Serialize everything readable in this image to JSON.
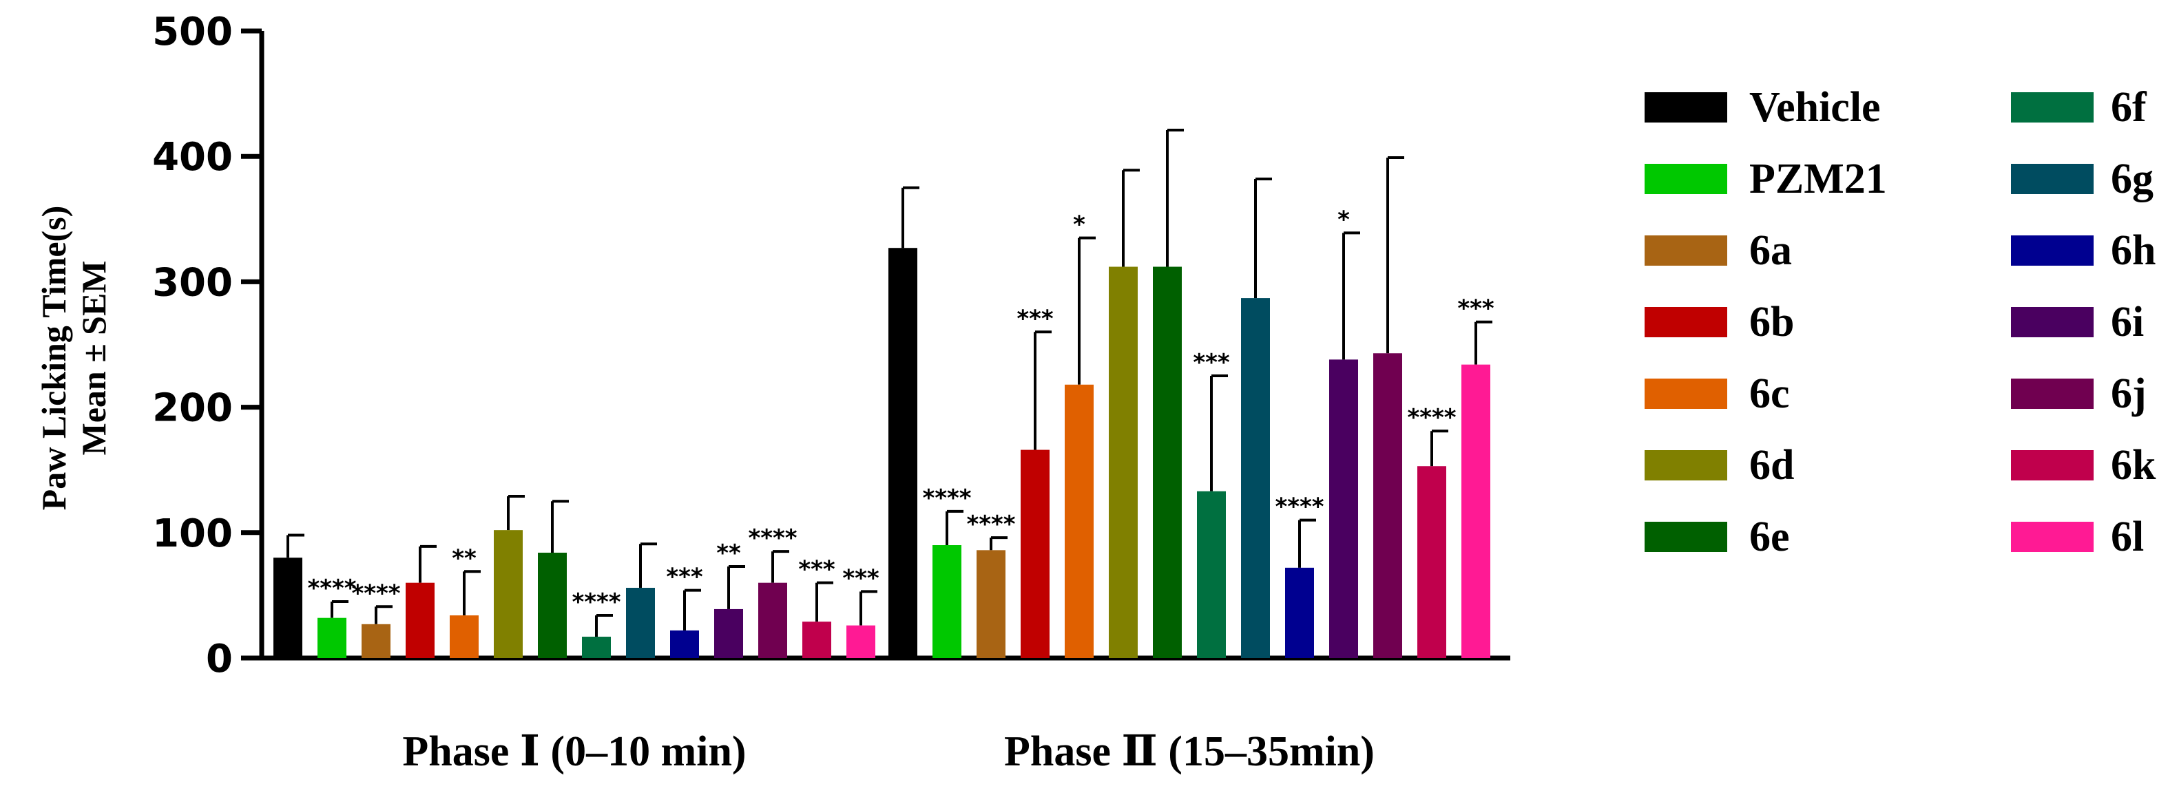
{
  "chart_data": {
    "type": "bar",
    "title": "",
    "ylabel_line1": "Paw Licking Time(s)",
    "ylabel_line2": "Mean ± SEM",
    "ylim": [
      0,
      500
    ],
    "yticks": [
      0,
      100,
      200,
      300,
      400,
      500
    ],
    "categories": [
      "Phase Ⅰ (0–10 min)",
      "Phase Ⅱ (15–35min)"
    ],
    "series": [
      {
        "name": "Vehicle",
        "color": "#000000",
        "values": [
          80,
          327
        ],
        "errors": [
          18,
          48
        ],
        "sig": [
          "",
          ""
        ]
      },
      {
        "name": "PZM21",
        "color": "#00c800",
        "values": [
          32,
          90
        ],
        "errors": [
          13,
          27
        ],
        "sig": [
          "****",
          "****"
        ]
      },
      {
        "name": "6a",
        "color": "#a86414",
        "values": [
          27,
          86
        ],
        "errors": [
          14,
          10
        ],
        "sig": [
          "****",
          "****"
        ]
      },
      {
        "name": "6b",
        "color": "#c00000",
        "values": [
          60,
          166
        ],
        "errors": [
          29,
          94
        ],
        "sig": [
          "",
          "***"
        ]
      },
      {
        "name": "6c",
        "color": "#e06000",
        "values": [
          34,
          218
        ],
        "errors": [
          35,
          117
        ],
        "sig": [
          "**",
          "*"
        ]
      },
      {
        "name": "6d",
        "color": "#808000",
        "values": [
          102,
          312
        ],
        "errors": [
          27,
          77
        ],
        "sig": [
          "",
          ""
        ]
      },
      {
        "name": "6e",
        "color": "#006000",
        "values": [
          84,
          312
        ],
        "errors": [
          41,
          109
        ],
        "sig": [
          "",
          ""
        ]
      },
      {
        "name": "6f",
        "color": "#007040",
        "values": [
          17,
          133
        ],
        "errors": [
          17,
          92
        ],
        "sig": [
          "****",
          "***"
        ]
      },
      {
        "name": "6g",
        "color": "#004c60",
        "values": [
          56,
          287
        ],
        "errors": [
          35,
          95
        ],
        "sig": [
          "",
          ""
        ]
      },
      {
        "name": "6h",
        "color": "#000090",
        "values": [
          22,
          72
        ],
        "errors": [
          32,
          38
        ],
        "sig": [
          "***",
          "****"
        ]
      },
      {
        "name": "6i",
        "color": "#4a0060",
        "values": [
          39,
          238
        ],
        "errors": [
          34,
          101
        ],
        "sig": [
          "**",
          "*"
        ]
      },
      {
        "name": "6j",
        "color": "#700050",
        "values": [
          60,
          243
        ],
        "errors": [
          25,
          156
        ],
        "sig": [
          "****",
          ""
        ]
      },
      {
        "name": "6k",
        "color": "#c0004c",
        "values": [
          29,
          153
        ],
        "errors": [
          31,
          28
        ],
        "sig": [
          "***",
          "****"
        ]
      },
      {
        "name": "6l",
        "color": "#ff1a94",
        "values": [
          26,
          234
        ],
        "errors": [
          27,
          34
        ],
        "sig": [
          "***",
          "***"
        ]
      }
    ],
    "legend_location": "right"
  }
}
